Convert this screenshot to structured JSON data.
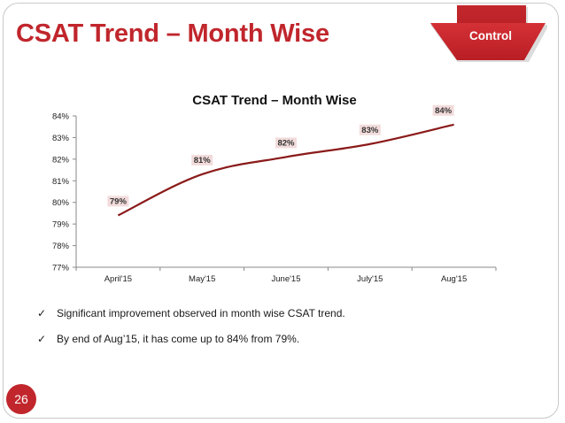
{
  "slide": {
    "title": "CSAT Trend – Month Wise",
    "badge_label": "Control",
    "page_number": "26",
    "bullets": [
      "Significant improvement observed in month wise CSAT trend.",
      "By end of Aug’15,  it has come up to 84% from 79%."
    ],
    "bullet_icon": "checkmark-icon"
  },
  "colors": {
    "title": "#c0262c",
    "badge": "#d42a2f",
    "line": "#8b1a1a",
    "data_label_bg": "#f2dcdb"
  },
  "chart_data": {
    "type": "line",
    "title": "CSAT Trend – Month Wise",
    "categories": [
      "April'15",
      "May'15",
      "June'15",
      "July'15",
      "Aug'15"
    ],
    "series": [
      {
        "values": [
          79.4,
          81.3,
          82.1,
          82.7,
          83.6
        ],
        "labels": [
          "79%",
          "81%",
          "82%",
          "83%",
          "84%"
        ]
      }
    ],
    "ylim": [
      77,
      84
    ],
    "yticks": [
      "77%",
      "78%",
      "79%",
      "80%",
      "81%",
      "82%",
      "83%",
      "84%"
    ],
    "xlabel": "",
    "ylabel": "",
    "grid": false,
    "legend": "none",
    "smooth": true
  }
}
